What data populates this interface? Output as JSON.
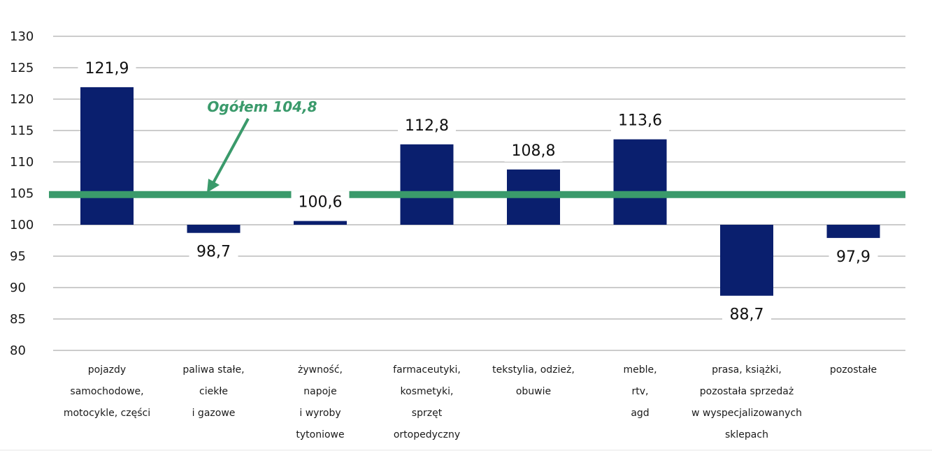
{
  "chart_data": {
    "type": "bar",
    "baseline": 100,
    "ylim": [
      80,
      130
    ],
    "yticks": [
      80,
      85,
      90,
      95,
      100,
      105,
      110,
      115,
      120,
      125,
      130
    ],
    "grid": true,
    "categories": [
      [
        "pojazdy",
        "samochodowe,",
        "motocykle,  części"
      ],
      [
        "paliwa stałe,",
        "ciekłe",
        "i gazowe"
      ],
      [
        "żywność,",
        "napoje",
        "i wyroby",
        "tytoniowe"
      ],
      [
        "farmaceutyki,",
        "kosmetyki,",
        "sprzęt",
        "ortopedyczny"
      ],
      [
        "tekstylia,  odzież,",
        "obuwie"
      ],
      [
        "meble,",
        "rtv,",
        "agd"
      ],
      [
        "prasa,  książki,",
        "pozostała sprzedaż",
        "w wyspecjalizowanych",
        "sklepach"
      ],
      [
        "pozostałe"
      ]
    ],
    "values": [
      121.9,
      98.7,
      100.6,
      112.8,
      108.8,
      113.6,
      88.7,
      97.9
    ],
    "value_labels": [
      "121,9",
      "98,7",
      "100,6",
      "112,8",
      "108,8",
      "113,6",
      "88,7",
      "97,9"
    ],
    "reference": {
      "value": 104.8,
      "label": "Ogółem 104,8"
    },
    "colors": {
      "bar": "#0a1f6e",
      "reference": "#3a9a6b",
      "grid": "#9a9a9a"
    }
  }
}
